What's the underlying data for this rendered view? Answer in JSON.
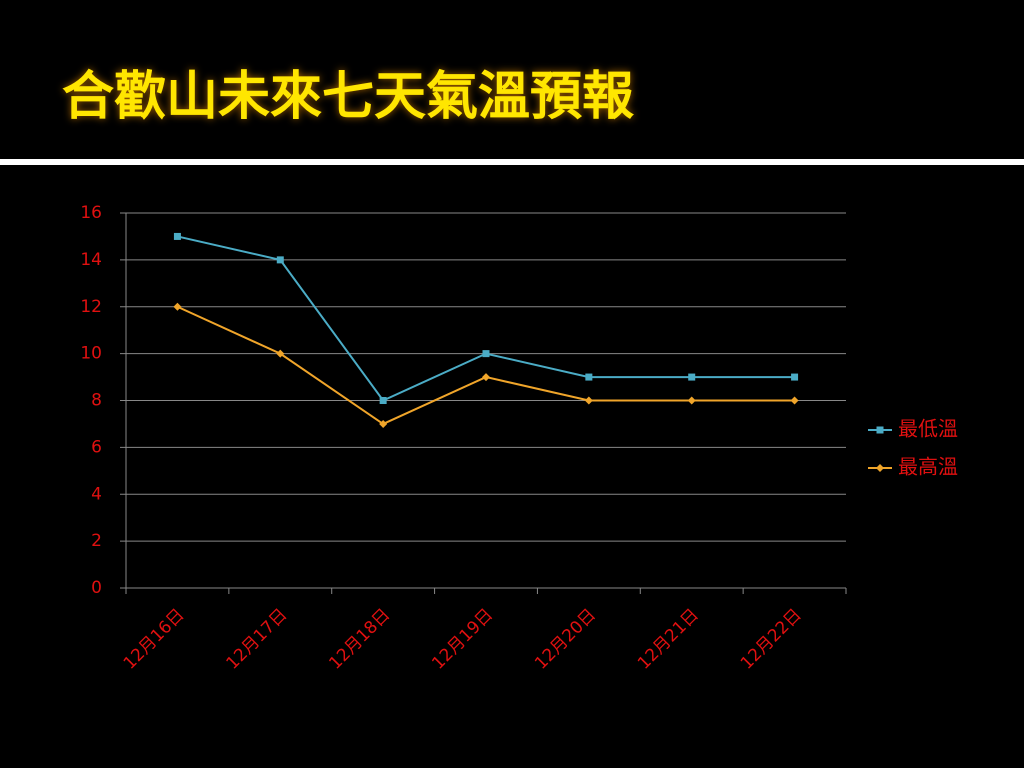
{
  "chart_data": {
    "type": "line",
    "title": "合歡山未來七天氣溫預報",
    "categories": [
      "12月16日",
      "12月17日",
      "12月18日",
      "12月19日",
      "12月20日",
      "12月21日",
      "12月22日"
    ],
    "series": [
      {
        "name": "最低溫",
        "color": "#4bacc6",
        "marker": "square",
        "values": [
          15,
          14,
          8,
          10,
          9,
          9,
          9
        ]
      },
      {
        "name": "最高溫",
        "color": "#f0a52a",
        "marker": "diamond",
        "values": [
          12,
          10,
          7,
          9,
          8,
          8,
          8
        ]
      }
    ],
    "ylim": [
      0,
      16
    ],
    "yticks": [
      0,
      2,
      4,
      6,
      8,
      10,
      12,
      14,
      16
    ],
    "grid": true,
    "legend": "right"
  }
}
